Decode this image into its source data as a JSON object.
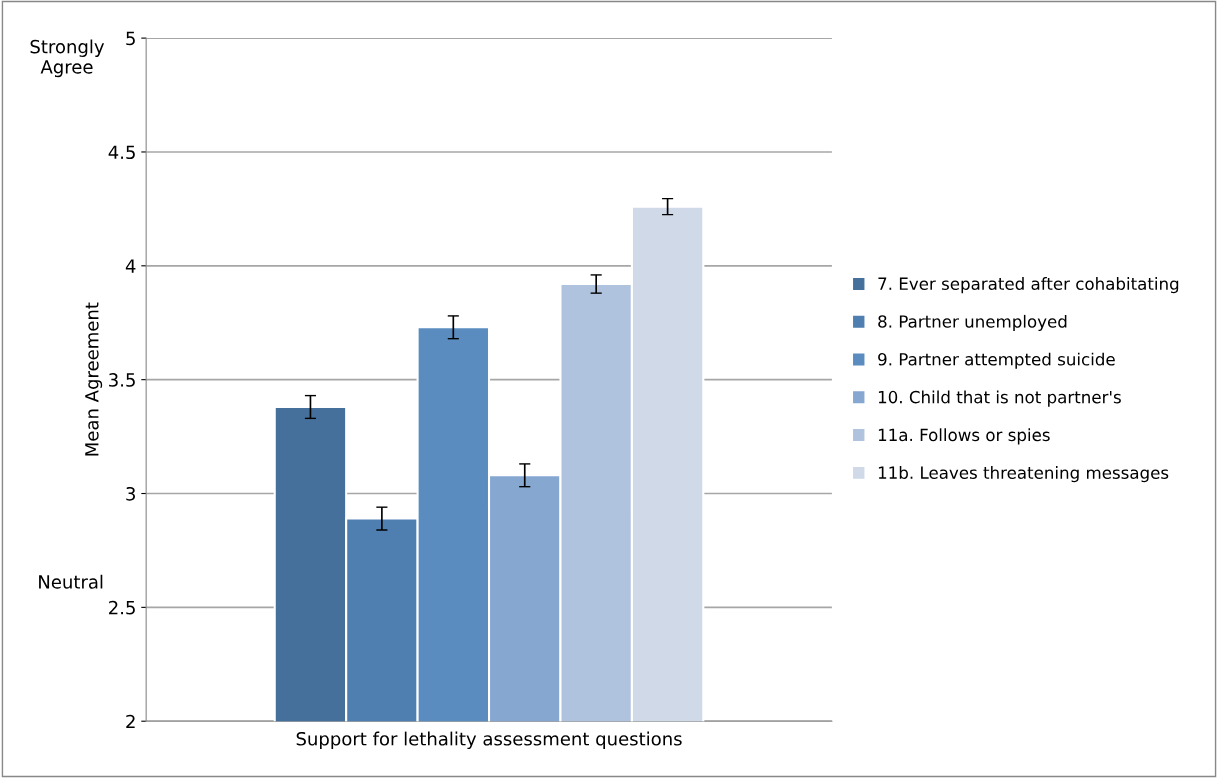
{
  "chart_data": {
    "type": "bar",
    "categories": [
      null
    ],
    "xlabel": "Support for lethality assessment questions",
    "ylabel": "Mean Agreement",
    "series": [
      {
        "name": "7. Ever separated after cohabitating",
        "color": "#46709c",
        "values": [
          3.38
        ],
        "errors": [
          0.05
        ]
      },
      {
        "name": "8. Partner unemployed",
        "color": "#4f7fb0",
        "values": [
          2.89
        ],
        "errors": [
          0.05
        ]
      },
      {
        "name": "9. Partner attempted suicide",
        "color": "#5a8cc0",
        "values": [
          3.73
        ],
        "errors": [
          0.05
        ]
      },
      {
        "name": "10. Child that is not partner's",
        "color": "#86a7d0",
        "values": [
          3.08
        ],
        "errors": [
          0.05
        ]
      },
      {
        "name": "11a. Follows or spies",
        "color": "#b0c3de",
        "values": [
          3.92
        ],
        "errors": [
          0.04
        ]
      },
      {
        "name": "11b. Leaves threatening messages",
        "color": "#d0d9e8",
        "values": [
          4.26
        ],
        "errors": [
          0.035
        ]
      }
    ],
    "ylim": [
      2,
      5
    ],
    "yticks": [
      2,
      2.5,
      3,
      3.5,
      4,
      4.5,
      5
    ],
    "grid": "y",
    "legend": "right",
    "annotations": [
      "Strongly\nAgree",
      "Neutral"
    ]
  }
}
